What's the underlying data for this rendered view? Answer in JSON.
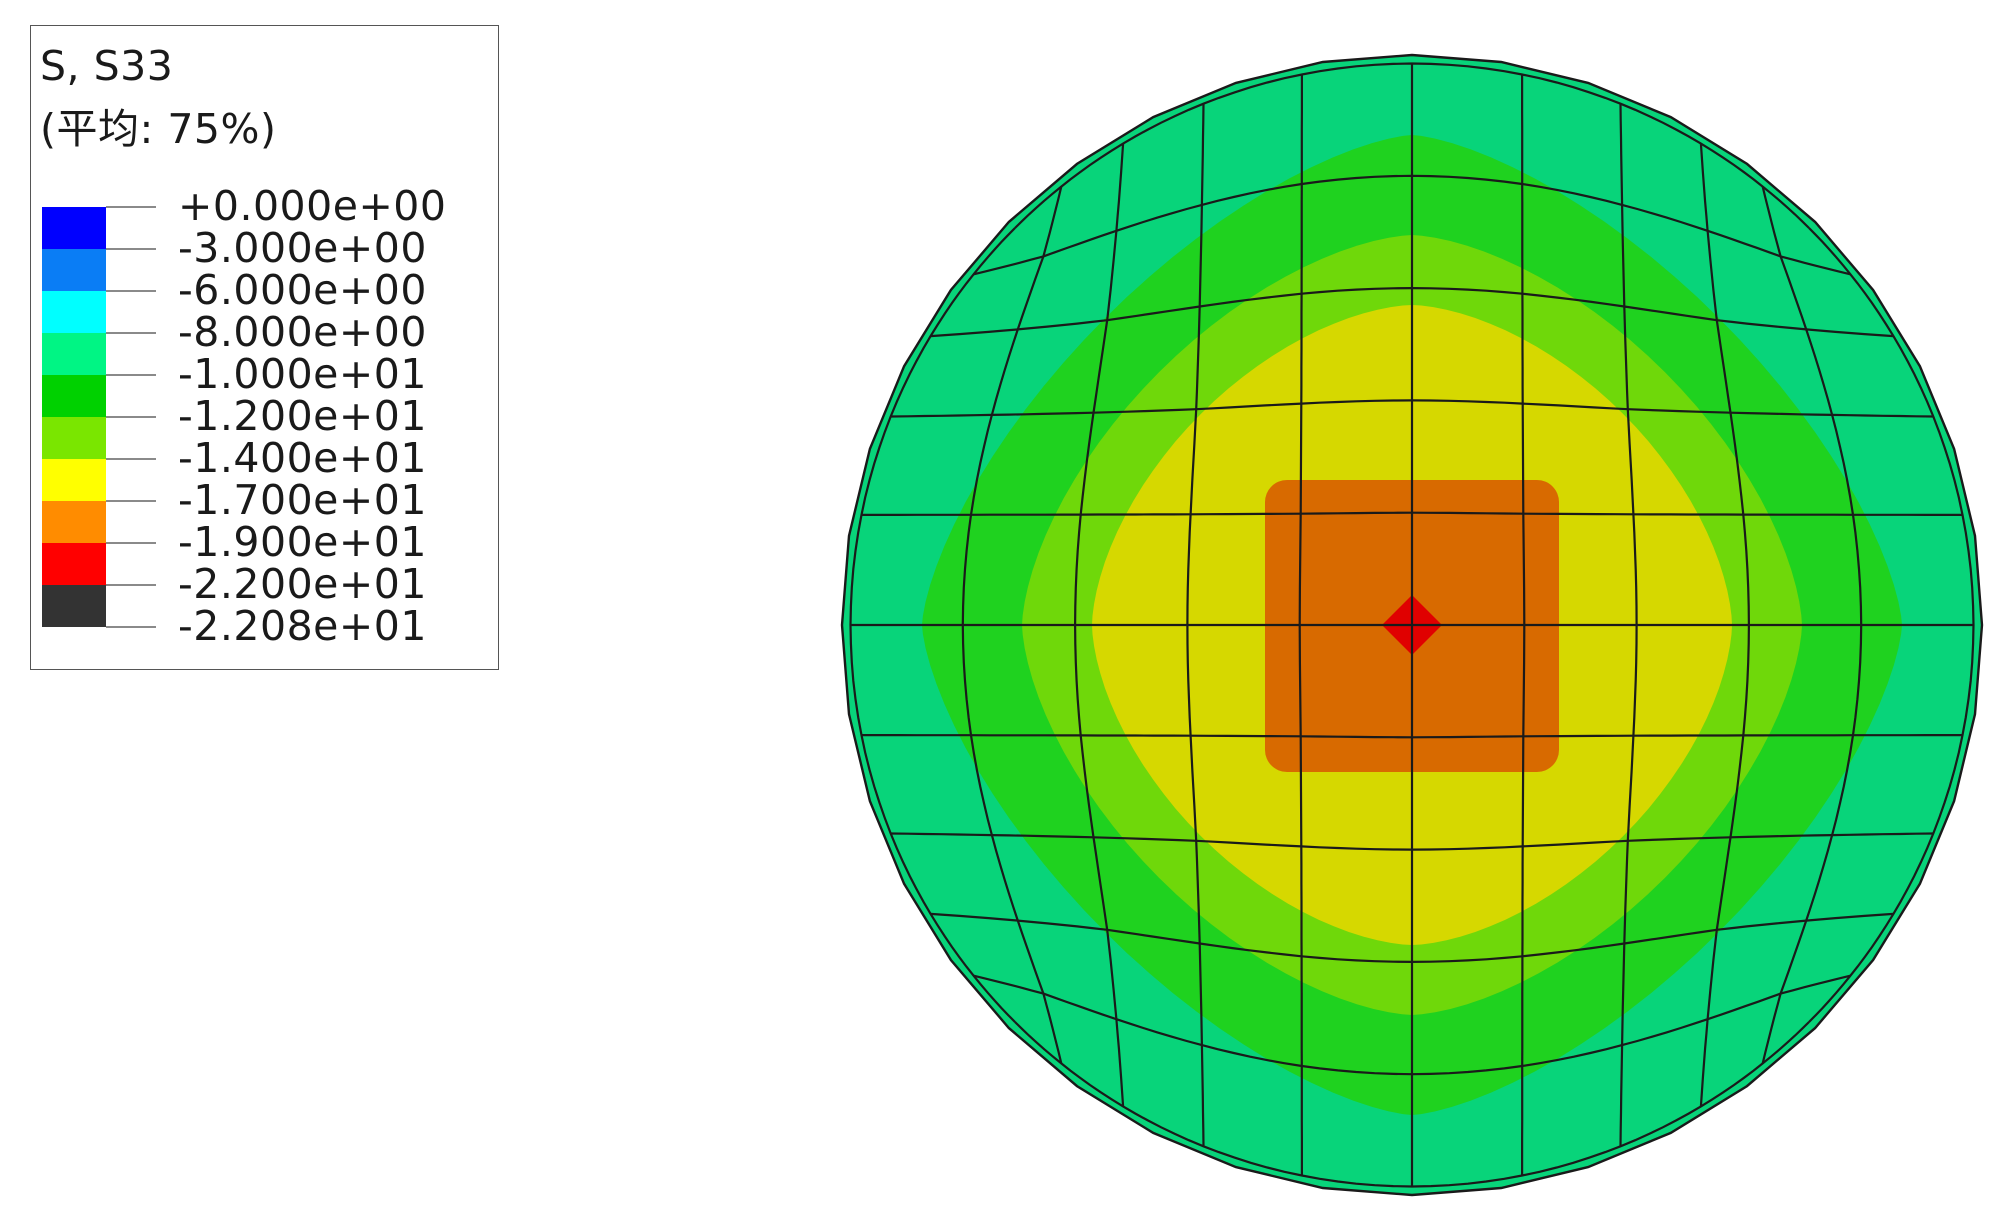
{
  "legend": {
    "title": "S, S33",
    "subtitle": "(平均: 75%)",
    "bands": [
      {
        "color": "#0000ff"
      },
      {
        "color": "#0a7df5"
      },
      {
        "color": "#00ffff"
      },
      {
        "color": "#00f584"
      },
      {
        "color": "#00d100"
      },
      {
        "color": "#7ae600"
      },
      {
        "color": "#ffff00"
      },
      {
        "color": "#ff8c00"
      },
      {
        "color": "#ff0000"
      },
      {
        "color": "#333333"
      }
    ],
    "levels": [
      {
        "value": 0.0,
        "label": "+0.000e+00"
      },
      {
        "value": -3.0,
        "label": "-3.000e+00"
      },
      {
        "value": -6.0,
        "label": "-6.000e+00"
      },
      {
        "value": -8.0,
        "label": "-8.000e+00"
      },
      {
        "value": -10.0,
        "label": "-1.000e+01"
      },
      {
        "value": -12.0,
        "label": "-1.200e+01"
      },
      {
        "value": -14.0,
        "label": "-1.400e+01"
      },
      {
        "value": -17.0,
        "label": "-1.700e+01"
      },
      {
        "value": -19.0,
        "label": "-1.900e+01"
      },
      {
        "value": -22.0,
        "label": "-2.200e+01"
      },
      {
        "value": -22.08,
        "label": "-2.208e+01"
      }
    ]
  },
  "contour_plot": {
    "shape": "circular mesh",
    "mesh_line_color": "#1a1a1a",
    "field_colors": {
      "rim": "#08d47a",
      "ring_green": "#1fd21f",
      "ring_lime": "#6fd80a",
      "ring_yellow": "#d6d800",
      "core_orange": "#d86a00",
      "center_red": "#e00000"
    },
    "contour_bands_from_rim_to_center": [
      "rim",
      "ring_green",
      "ring_lime",
      "ring_yellow",
      "core_orange",
      "center_red"
    ],
    "stress_range": {
      "min": -22.08,
      "max": 0.0
    }
  }
}
